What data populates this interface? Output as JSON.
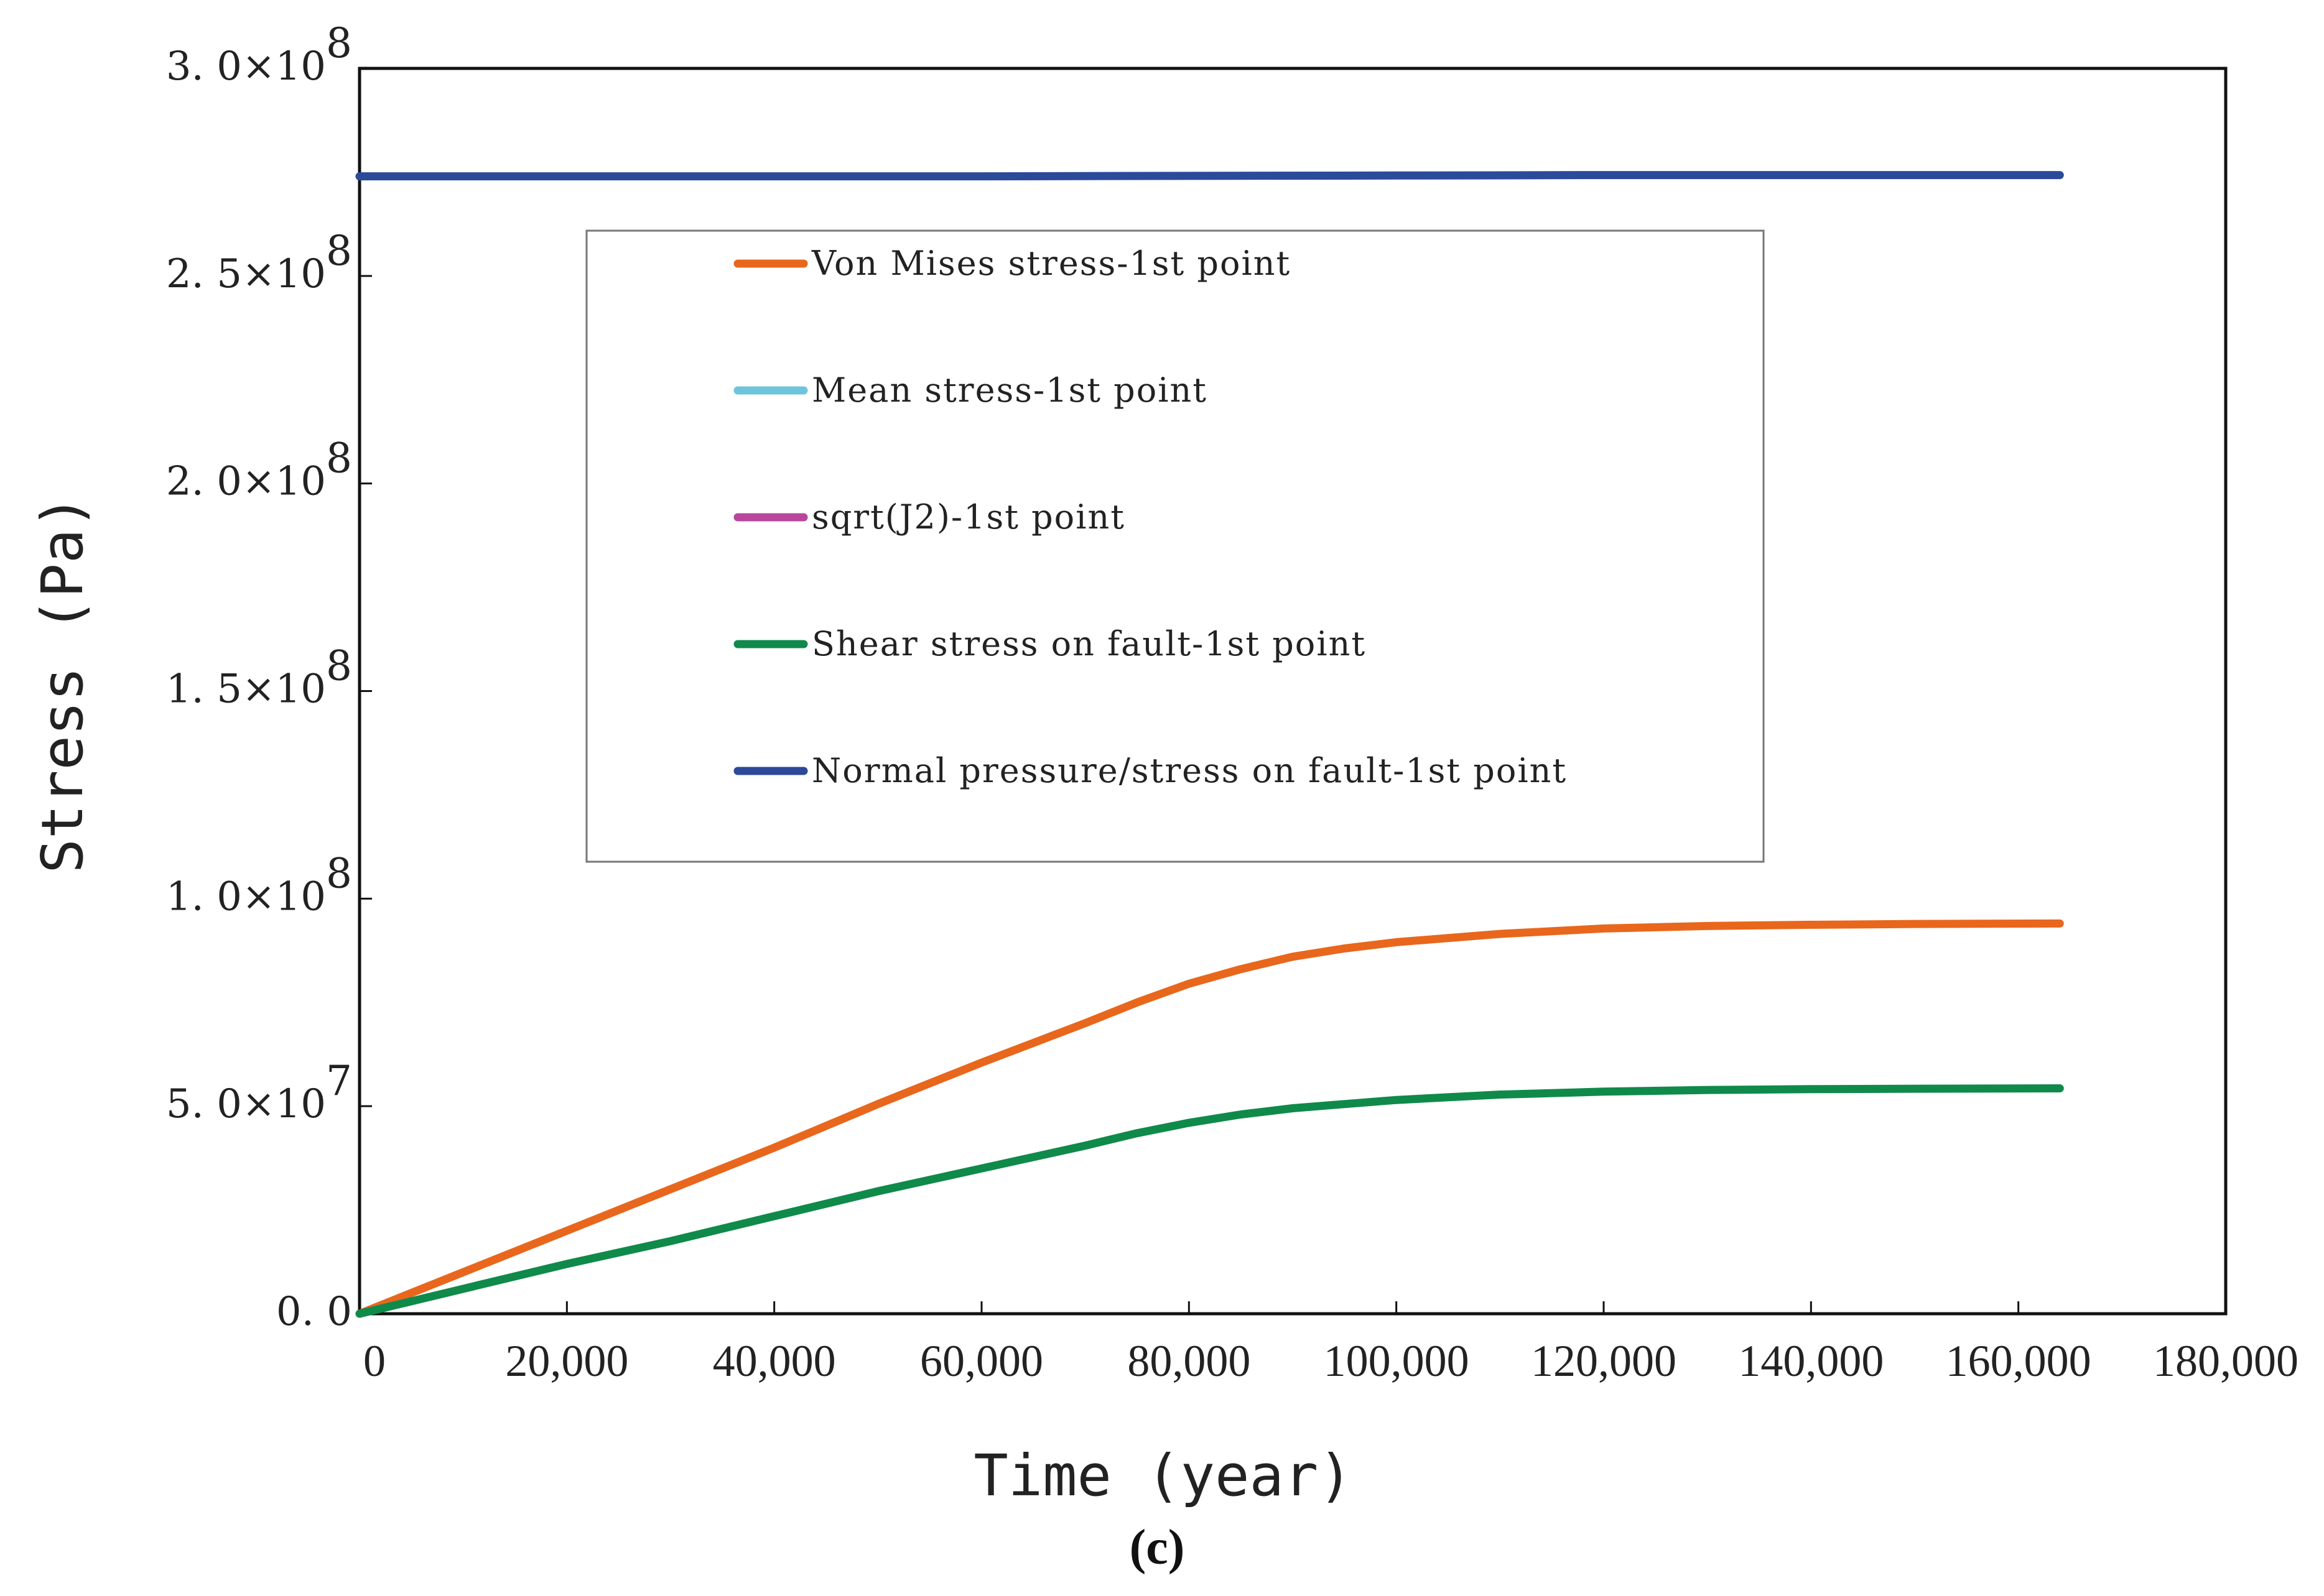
{
  "chart_data": {
    "type": "line",
    "xlabel": "Time (year)",
    "ylabel": "Stress (Pa)",
    "panel_label": "(c)",
    "xlim": [
      0,
      180000
    ],
    "ylim": [
      0,
      300000000
    ],
    "x_ticks": [
      {
        "value": 0,
        "label": "0"
      },
      {
        "value": 20000,
        "label": "20,000"
      },
      {
        "value": 40000,
        "label": "40,000"
      },
      {
        "value": 60000,
        "label": "60,000"
      },
      {
        "value": 80000,
        "label": "80,000"
      },
      {
        "value": 100000,
        "label": "100,000"
      },
      {
        "value": 120000,
        "label": "120,000"
      },
      {
        "value": 140000,
        "label": "140,000"
      },
      {
        "value": 160000,
        "label": "160,000"
      },
      {
        "value": 180000,
        "label": "180,000"
      }
    ],
    "y_ticks": [
      {
        "value": 0,
        "mantissa": "0. 0",
        "exp": ""
      },
      {
        "value": 50000000,
        "mantissa": "5. 0×10",
        "exp": "7"
      },
      {
        "value": 100000000,
        "mantissa": "1. 0×10",
        "exp": "8"
      },
      {
        "value": 150000000,
        "mantissa": "1. 5×10",
        "exp": "8"
      },
      {
        "value": 200000000,
        "mantissa": "2. 0×10",
        "exp": "8"
      },
      {
        "value": 250000000,
        "mantissa": "2. 5×10",
        "exp": "8"
      },
      {
        "value": 300000000,
        "mantissa": "3. 0×10",
        "exp": "8"
      }
    ],
    "grid": false,
    "legend_position": "upper-center",
    "series": [
      {
        "name": "Von Mises stress-1st point",
        "color": "#e8671c",
        "x": [
          0,
          10000,
          20000,
          30000,
          40000,
          50000,
          60000,
          70000,
          75000,
          80000,
          85000,
          90000,
          95000,
          100000,
          110000,
          120000,
          130000,
          140000,
          150000,
          164000
        ],
        "y": [
          0,
          10000000,
          20000000,
          30000000,
          40000000,
          50500000,
          60500000,
          70000000,
          75000000,
          79500000,
          83000000,
          86000000,
          88000000,
          89500000,
          91500000,
          92800000,
          93400000,
          93700000,
          93900000,
          94000000
        ]
      },
      {
        "name": "Mean stress-1st point",
        "color": "#6ec4dc",
        "x": [],
        "y": []
      },
      {
        "name": "sqrt(J2)-1st point",
        "color": "#b8479c",
        "x": [],
        "y": []
      },
      {
        "name": "Shear stress on fault-1st point",
        "color": "#0f8a4a",
        "x": [
          0,
          10000,
          20000,
          30000,
          40000,
          50000,
          60000,
          70000,
          75000,
          80000,
          85000,
          90000,
          95000,
          100000,
          110000,
          120000,
          130000,
          140000,
          150000,
          164000
        ],
        "y": [
          0,
          6000000,
          12000000,
          17500000,
          23500000,
          29500000,
          35000000,
          40500000,
          43500000,
          46000000,
          48000000,
          49500000,
          50500000,
          51500000,
          52800000,
          53500000,
          53900000,
          54100000,
          54200000,
          54300000
        ]
      },
      {
        "name": "Normal pressure/stress on fault-1st point",
        "color": "#2b4a9a",
        "x": [
          0,
          20000,
          40000,
          60000,
          80000,
          100000,
          120000,
          140000,
          164000
        ],
        "y": [
          274000000,
          274000000,
          274000000,
          274000000,
          274100000,
          274200000,
          274300000,
          274300000,
          274300000
        ]
      }
    ]
  }
}
